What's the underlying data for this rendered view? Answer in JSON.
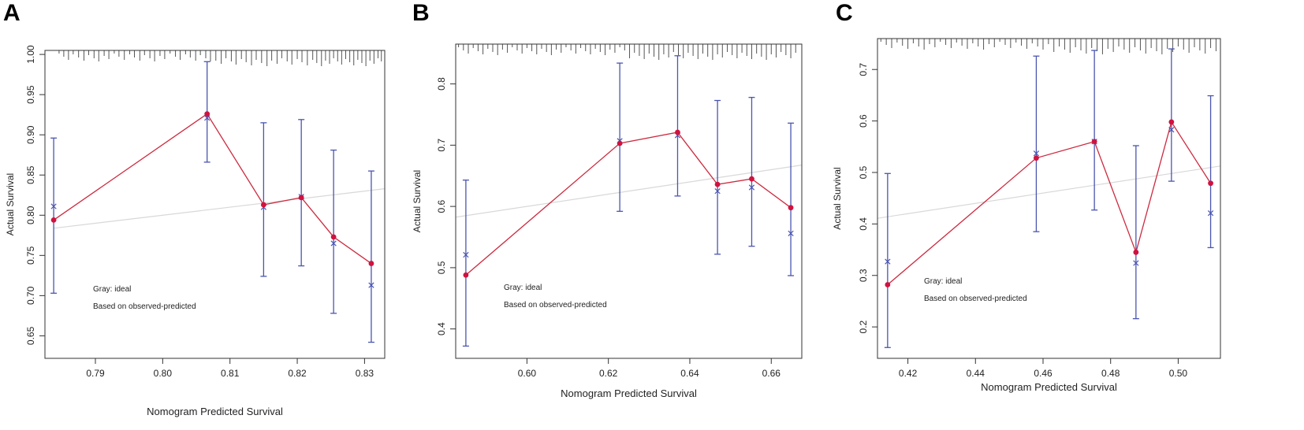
{
  "figure": {
    "panel_letters": [
      "A",
      "B",
      "C"
    ]
  },
  "colors": {
    "observed": "#cc2a3f",
    "marker": "#d0123f",
    "errorbar": "#4a55b0",
    "predicted_x": "#4a55b0",
    "ideal": "#d8d8d8",
    "frame": "#333333"
  },
  "chart_data": [
    {
      "type": "line",
      "panel": "A",
      "xlabel": "Nomogram Predicted Survival",
      "ylabel": "Actual Survival",
      "xlim": [
        0.7825,
        0.833
      ],
      "ylim": [
        0.622,
        1.005
      ],
      "xticks": [
        0.79,
        0.8,
        0.81,
        0.82,
        0.83
      ],
      "xtick_labels": [
        "0.79",
        "0.80",
        "0.81",
        "0.82",
        "0.83"
      ],
      "yticks": [
        0.65,
        0.7,
        0.75,
        0.8,
        0.85,
        0.9,
        0.95,
        1.0
      ],
      "ytick_labels": [
        "0.65",
        "0.70",
        "0.75",
        "0.80",
        "0.85",
        "0.90",
        "0.95",
        "1.00"
      ],
      "legend": [
        "Gray: ideal",
        "Based on observed-predicted"
      ],
      "legend_placement": "bottom-left",
      "series": [
        {
          "name": "observed",
          "x": [
            0.7838,
            0.8066,
            0.815,
            0.8206,
            0.8254,
            0.831
          ],
          "values": [
            0.794,
            0.926,
            0.813,
            0.822,
            0.773,
            0.74
          ]
        },
        {
          "name": "bias-corrected",
          "x": [
            0.7838,
            0.8066,
            0.815,
            0.8206,
            0.8254,
            0.831
          ],
          "values": [
            0.811,
            0.921,
            0.81,
            0.823,
            0.765,
            0.713
          ]
        }
      ],
      "ci_lower": [
        0.703,
        0.866,
        0.724,
        0.737,
        0.678,
        0.642
      ],
      "ci_upper": [
        0.896,
        0.991,
        0.915,
        0.919,
        0.881,
        0.855
      ],
      "ideal_line": {
        "from": [
          0.7838,
          0.7838
        ],
        "to": [
          0.833,
          0.833
        ]
      },
      "rug": [
        0.7846,
        0.7853,
        0.786,
        0.7867,
        0.7875,
        0.7883,
        0.789,
        0.7898,
        0.7905,
        0.7913,
        0.792,
        0.7928,
        0.7935,
        0.7943,
        0.7951,
        0.7958,
        0.7966,
        0.7973,
        0.7981,
        0.7988,
        0.7996,
        0.8003,
        0.8011,
        0.8019,
        0.8026,
        0.8034,
        0.8041,
        0.8049,
        0.8056,
        0.8064,
        0.8071,
        0.8079,
        0.8087,
        0.8094,
        0.8102,
        0.8109,
        0.8117,
        0.8124,
        0.8132,
        0.8139,
        0.8147,
        0.8155,
        0.8162,
        0.817,
        0.8177,
        0.8185,
        0.8192,
        0.82,
        0.8207,
        0.8215,
        0.8223,
        0.8229,
        0.8236,
        0.8242,
        0.8248,
        0.8254,
        0.826,
        0.8266,
        0.8272,
        0.8278,
        0.8284,
        0.829,
        0.8296,
        0.8302,
        0.8308,
        0.8314,
        0.832,
        0.8325
      ]
    },
    {
      "type": "line",
      "panel": "B",
      "xlabel": "Nomogram Predicted Survival",
      "ylabel": "Actual Survival",
      "xlim": [
        0.5825,
        0.6675
      ],
      "ylim": [
        0.352,
        0.865
      ],
      "xticks": [
        0.6,
        0.62,
        0.64,
        0.66
      ],
      "xtick_labels": [
        "0.60",
        "0.62",
        "0.64",
        "0.66"
      ],
      "yticks": [
        0.4,
        0.5,
        0.6,
        0.7,
        0.8
      ],
      "ytick_labels": [
        "0.4",
        "0.5",
        "0.6",
        "0.7",
        "0.8"
      ],
      "legend": [
        "Gray: ideal",
        "Based on observed-predicted"
      ],
      "legend_placement": "bottom-left",
      "series": [
        {
          "name": "observed",
          "x": [
            0.585,
            0.6228,
            0.637,
            0.6468,
            0.6552,
            0.6648
          ],
          "values": [
            0.488,
            0.703,
            0.721,
            0.636,
            0.645,
            0.598
          ]
        },
        {
          "name": "bias-corrected",
          "x": [
            0.585,
            0.6228,
            0.637,
            0.6468,
            0.6552,
            0.6648
          ],
          "values": [
            0.521,
            0.707,
            0.716,
            0.625,
            0.631,
            0.556
          ]
        }
      ],
      "ci_lower": [
        0.372,
        0.592,
        0.617,
        0.522,
        0.535,
        0.487
      ],
      "ci_upper": [
        0.643,
        0.834,
        0.846,
        0.773,
        0.778,
        0.736
      ],
      "ideal_line": {
        "from": [
          0.5825,
          0.5825
        ],
        "to": [
          0.6675,
          0.6675
        ]
      },
      "rug": [
        0.5832,
        0.5844,
        0.5856,
        0.5868,
        0.588,
        0.5892,
        0.5904,
        0.5916,
        0.5928,
        0.594,
        0.5952,
        0.5964,
        0.5976,
        0.5988,
        0.6,
        0.6012,
        0.6024,
        0.6036,
        0.6048,
        0.606,
        0.6072,
        0.6084,
        0.6096,
        0.6108,
        0.612,
        0.6132,
        0.6144,
        0.6156,
        0.6168,
        0.618,
        0.6192,
        0.6204,
        0.6216,
        0.6228,
        0.624,
        0.6252,
        0.6264,
        0.6276,
        0.6288,
        0.63,
        0.6312,
        0.6324,
        0.6336,
        0.6348,
        0.636,
        0.6372,
        0.6384,
        0.6396,
        0.6408,
        0.642,
        0.6432,
        0.6444,
        0.6456,
        0.6468,
        0.648,
        0.6492,
        0.6504,
        0.6516,
        0.6528,
        0.654,
        0.6552,
        0.6564,
        0.6576,
        0.6588,
        0.66,
        0.6612,
        0.6624,
        0.6636,
        0.6648,
        0.666
      ]
    },
    {
      "type": "line",
      "panel": "C",
      "xlabel": "Nomogram Predicted Survival",
      "ylabel": "Actual Survival",
      "xlim": [
        0.411,
        0.5125
      ],
      "ylim": [
        0.139,
        0.76
      ],
      "xticks": [
        0.42,
        0.44,
        0.46,
        0.48,
        0.5
      ],
      "xtick_labels": [
        "0.42",
        "0.44",
        "0.46",
        "0.48",
        "0.50"
      ],
      "yticks": [
        0.2,
        0.3,
        0.4,
        0.5,
        0.6,
        0.7
      ],
      "ytick_labels": [
        "0.2",
        "0.3",
        "0.4",
        "0.5",
        "0.6",
        "0.7"
      ],
      "legend": [
        "Gray: ideal",
        "Based on observed-predicted"
      ],
      "legend_placement": "bottom-left",
      "series": [
        {
          "name": "observed",
          "x": [
            0.414,
            0.458,
            0.4752,
            0.4875,
            0.498,
            0.5096
          ],
          "values": [
            0.282,
            0.528,
            0.56,
            0.345,
            0.598,
            0.479
          ]
        },
        {
          "name": "bias-corrected",
          "x": [
            0.414,
            0.458,
            0.4752,
            0.4875,
            0.498,
            0.5096
          ],
          "values": [
            0.327,
            0.537,
            0.56,
            0.324,
            0.583,
            0.421
          ]
        }
      ],
      "ci_lower": [
        0.16,
        0.385,
        0.427,
        0.216,
        0.483,
        0.354
      ],
      "ci_upper": [
        0.498,
        0.726,
        0.737,
        0.552,
        0.74,
        0.649
      ],
      "ideal_line": {
        "from": [
          0.411,
          0.411
        ],
        "to": [
          0.5125,
          0.5125
        ]
      },
      "rug": [
        0.412,
        0.4136,
        0.4152,
        0.4168,
        0.4184,
        0.42,
        0.4216,
        0.4232,
        0.4248,
        0.4264,
        0.428,
        0.4296,
        0.4312,
        0.4328,
        0.4344,
        0.436,
        0.4376,
        0.4392,
        0.4408,
        0.4424,
        0.444,
        0.4456,
        0.4472,
        0.4488,
        0.4504,
        0.452,
        0.4536,
        0.4552,
        0.4568,
        0.4584,
        0.46,
        0.4616,
        0.4632,
        0.4648,
        0.4664,
        0.468,
        0.4696,
        0.4712,
        0.4728,
        0.4744,
        0.476,
        0.4776,
        0.4792,
        0.4808,
        0.4824,
        0.484,
        0.4856,
        0.4872,
        0.4888,
        0.4904,
        0.492,
        0.4936,
        0.4952,
        0.4968,
        0.4984,
        0.5,
        0.5016,
        0.5032,
        0.5048,
        0.5064,
        0.508,
        0.5096,
        0.5112
      ]
    }
  ]
}
